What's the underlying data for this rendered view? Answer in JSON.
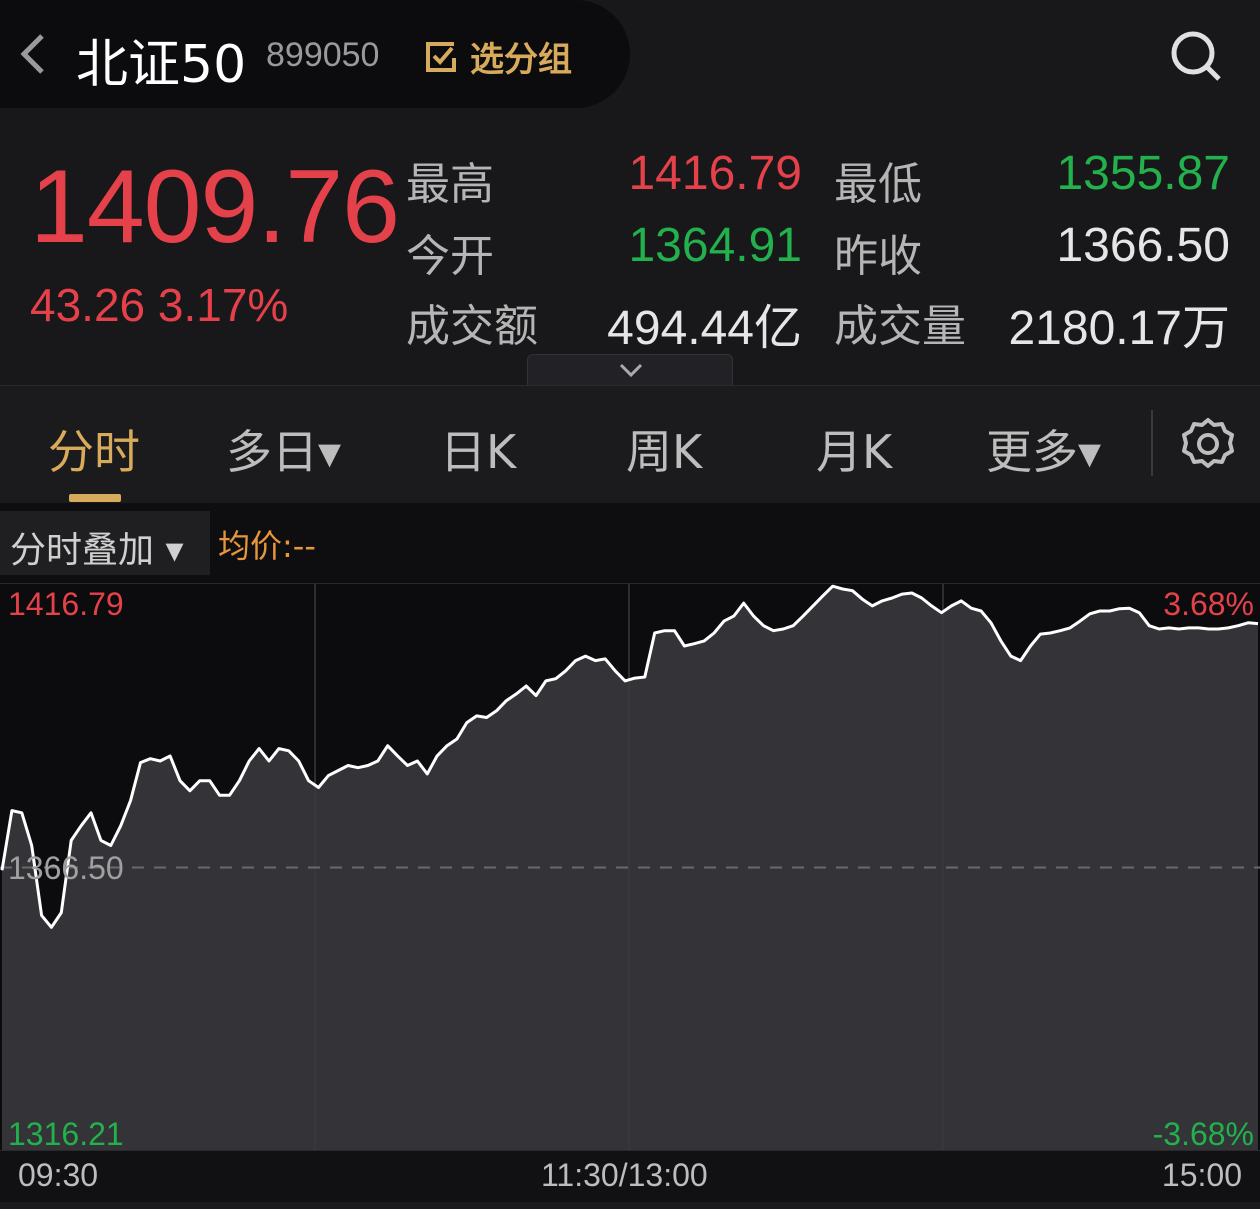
{
  "header": {
    "title": "北证50",
    "code": "899050",
    "group_label": "选分组",
    "icons": {
      "back": "chevron-left-icon",
      "group": "checkbox-icon",
      "search": "search-icon"
    }
  },
  "quote": {
    "price": "1409.76",
    "change": "43.26",
    "change_pct": "3.17%",
    "high_label": "最高",
    "high": "1416.79",
    "low_label": "最低",
    "low": "1355.87",
    "open_label": "今开",
    "open": "1364.91",
    "prev_close_label": "昨收",
    "prev_close": "1366.50",
    "turnover_label": "成交额",
    "turnover": "494.44亿",
    "volume_label": "成交量",
    "volume": "2180.17万"
  },
  "tabs": [
    {
      "label": "分时",
      "active": true
    },
    {
      "label": "多日▾"
    },
    {
      "label": "日K"
    },
    {
      "label": "周K"
    },
    {
      "label": "月K"
    },
    {
      "label": "更多▾"
    }
  ],
  "toolbar": {
    "overlay_label": "分时叠加 ▾",
    "avg_label": "均价:--"
  },
  "colors": {
    "up": "#e5414a",
    "down": "#22b14c",
    "accent": "#d8aa5c",
    "avg": "#e8963a"
  },
  "chart_data": {
    "type": "area",
    "x_ticks": [
      "09:30",
      "11:30/13:00",
      "15:00"
    ],
    "y_labels": {
      "top": "1416.79",
      "mid": "1366.50",
      "bottom": "1316.21"
    },
    "pct_labels": {
      "top": "3.68%",
      "bottom": "-3.68%"
    },
    "ylim": [
      1316.21,
      1416.79
    ],
    "baseline": 1366.5,
    "values": [
      1366.0,
      1376.6,
      1376.2,
      1370.4,
      1358.0,
      1355.9,
      1358.5,
      1371.3,
      1373.9,
      1376.2,
      1371.3,
      1370.4,
      1373.9,
      1378.4,
      1385.1,
      1385.8,
      1385.4,
      1386.3,
      1381.9,
      1380.1,
      1381.9,
      1381.9,
      1379.3,
      1379.3,
      1381.9,
      1385.4,
      1387.6,
      1385.4,
      1387.6,
      1387.2,
      1385.4,
      1381.9,
      1380.7,
      1382.8,
      1383.7,
      1384.6,
      1384.2,
      1384.6,
      1385.4,
      1388.1,
      1386.3,
      1384.6,
      1385.4,
      1383.1,
      1386.3,
      1388.1,
      1389.3,
      1392.2,
      1393.4,
      1393.1,
      1394.3,
      1396.1,
      1397.3,
      1398.7,
      1397.0,
      1399.6,
      1400.0,
      1401.4,
      1403.2,
      1404.0,
      1403.2,
      1403.5,
      1401.4,
      1399.6,
      1400.1,
      1400.3,
      1408.1,
      1408.5,
      1408.5,
      1405.8,
      1406.2,
      1406.7,
      1408.1,
      1410.2,
      1411.1,
      1413.4,
      1411.1,
      1409.4,
      1408.5,
      1408.8,
      1409.4,
      1411.1,
      1412.9,
      1414.7,
      1416.4,
      1415.9,
      1415.6,
      1414.1,
      1412.9,
      1413.8,
      1414.3,
      1415.0,
      1415.2,
      1414.3,
      1412.9,
      1411.7,
      1412.9,
      1413.8,
      1412.5,
      1412.0,
      1409.9,
      1406.7,
      1404.0,
      1403.2,
      1405.8,
      1407.9,
      1408.1,
      1408.5,
      1409.0,
      1410.2,
      1411.5,
      1412.0,
      1412.0,
      1412.4,
      1412.5,
      1411.7,
      1409.4,
      1408.8,
      1409.0,
      1408.8,
      1409.0,
      1409.0,
      1408.8,
      1408.8,
      1409.0,
      1409.4,
      1409.9,
      1409.76
    ]
  }
}
